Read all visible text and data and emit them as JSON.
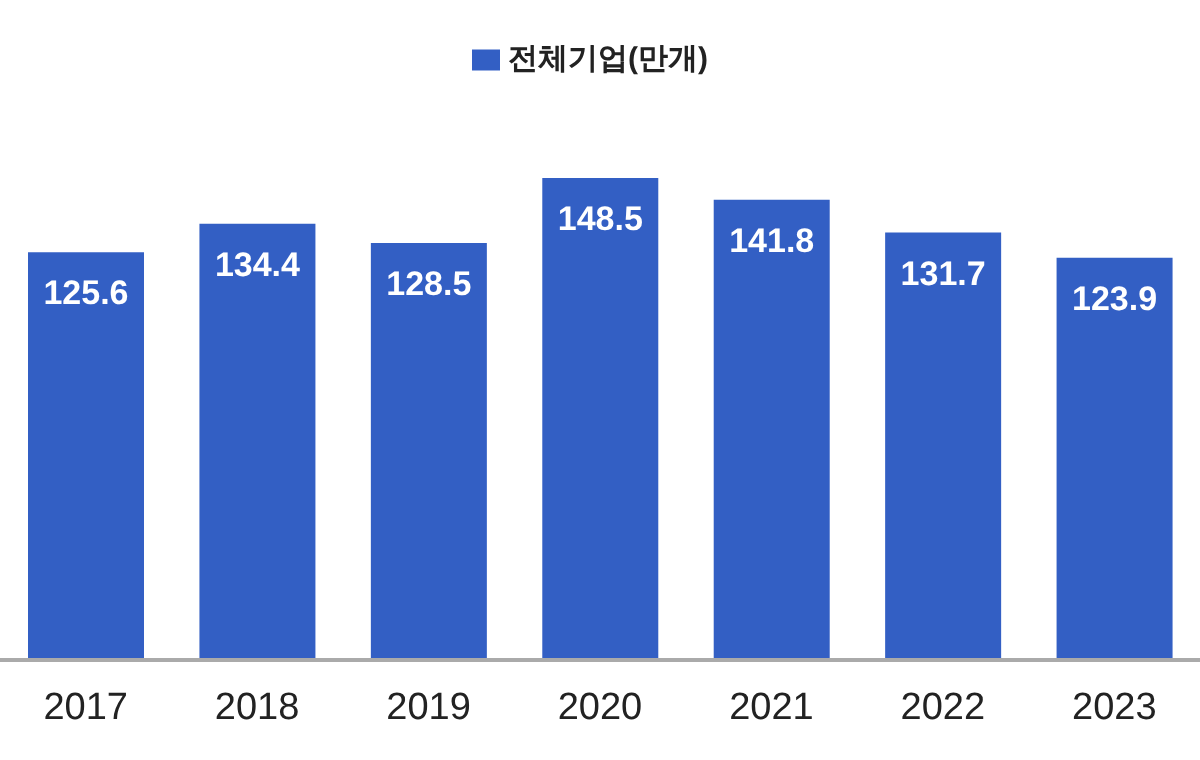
{
  "chart_data": {
    "type": "bar",
    "categories": [
      "2017",
      "2018",
      "2019",
      "2020",
      "2021",
      "2022",
      "2023"
    ],
    "series": [
      {
        "name": "전체기업(만개)",
        "color": "#335fc4",
        "values": [
          125.6,
          134.4,
          128.5,
          148.5,
          141.8,
          131.7,
          123.9
        ]
      }
    ],
    "data_labels": true,
    "grid": false,
    "legend": "top",
    "tick_labels": "x"
  }
}
